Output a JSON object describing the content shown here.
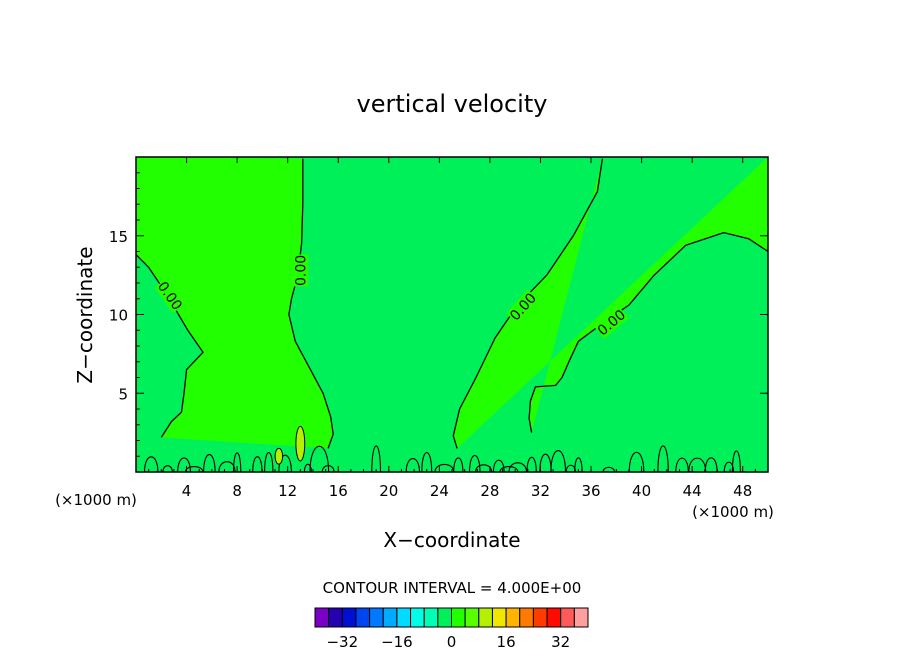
{
  "chart_data": {
    "type": "contour",
    "title": "vertical velocity",
    "xlabel": "X−coordinate",
    "ylabel": "Z−coordinate",
    "x_unit": "(×1000 m)",
    "y_unit": "(×1000 m)",
    "xlim": [
      0,
      50
    ],
    "ylim": [
      0,
      20
    ],
    "x_ticks": [
      4,
      8,
      12,
      16,
      20,
      24,
      28,
      32,
      36,
      40,
      44,
      48
    ],
    "y_ticks": [
      5,
      10,
      15
    ],
    "contour_interval_text": "CONTOUR INTERVAL = 4.000E+00",
    "contour_interval": 4.0,
    "contour_label": "0.00",
    "colors": {
      "negative_region": "#00f05a",
      "positive_region": "#22ff00"
    },
    "zero_contours": [
      {
        "name": "left-edge",
        "points": [
          [
            0,
            13.8
          ],
          [
            1,
            13
          ],
          [
            2,
            11.8
          ],
          [
            3,
            10.5
          ],
          [
            4.1,
            9
          ],
          [
            5.3,
            7.6
          ],
          [
            4,
            6.5
          ],
          [
            3.8,
            5
          ],
          [
            3.6,
            3.8
          ],
          [
            2.8,
            3.2
          ],
          [
            2,
            2.2
          ]
        ]
      },
      {
        "name": "x13",
        "points": [
          [
            13.2,
            19.9
          ],
          [
            13.2,
            17
          ],
          [
            13.1,
            14.5
          ],
          [
            12.8,
            12.5
          ],
          [
            12.3,
            11
          ],
          [
            12.1,
            10
          ],
          [
            12.6,
            8.3
          ],
          [
            13.8,
            6.5
          ],
          [
            14.8,
            5
          ],
          [
            15.4,
            3.5
          ],
          [
            15.6,
            2.4
          ],
          [
            15.2,
            1.5
          ]
        ]
      },
      {
        "name": "x36-branch",
        "points": [
          [
            36.9,
            19.9
          ],
          [
            36.5,
            17.8
          ],
          [
            34.6,
            15
          ],
          [
            32.5,
            12.5
          ],
          [
            30.1,
            10.5
          ],
          [
            28.4,
            8.5
          ],
          [
            26.9,
            6
          ],
          [
            25.6,
            4
          ],
          [
            25.1,
            2.3
          ],
          [
            25.4,
            1.5
          ]
        ]
      },
      {
        "name": "upper-right-bulge",
        "points": [
          [
            50,
            14
          ],
          [
            48.5,
            14.8
          ],
          [
            46.5,
            15.2
          ],
          [
            43.5,
            14.4
          ],
          [
            41,
            12.5
          ],
          [
            39,
            10.6
          ],
          [
            37,
            9.5
          ],
          [
            35,
            8.3
          ],
          [
            34.3,
            7.1
          ],
          [
            33.7,
            6
          ],
          [
            33.2,
            5.5
          ],
          [
            31.6,
            5.4
          ],
          [
            31.2,
            4.5
          ],
          [
            31.1,
            3.4
          ],
          [
            31.3,
            2.5
          ]
        ]
      }
    ],
    "small_contours": [
      {
        "name": "updraft-cell-x13",
        "cx": 13.0,
        "cy": 1.8,
        "rx": 0.35,
        "ry": 1.1
      },
      {
        "name": "updraft-cell-x11",
        "cx": 11.3,
        "cy": 1.0,
        "rx": 0.3,
        "ry": 0.5
      }
    ],
    "contour_labels": [
      {
        "x": 2.7,
        "y": 11.2,
        "angle": 55
      },
      {
        "x": 13.0,
        "y": 12.8,
        "angle": -90
      },
      {
        "x": 30.6,
        "y": 10.5,
        "angle": -48
      },
      {
        "x": 37.6,
        "y": 9.5,
        "angle": -40
      }
    ],
    "colorbar": {
      "levels": [
        -36,
        -32,
        -28,
        -24,
        -20,
        -16,
        -12,
        -8,
        -4,
        0,
        4,
        8,
        12,
        16,
        20,
        24,
        28,
        32,
        36
      ],
      "tick_values": [
        -32,
        -16,
        0,
        16,
        32
      ],
      "tick_labels": [
        "−32",
        "−16",
        "0",
        "16",
        "32"
      ],
      "colors": [
        "#7a00c8",
        "#2800b4",
        "#0010d2",
        "#0046f0",
        "#0078ff",
        "#00aaff",
        "#00dcff",
        "#00ffe6",
        "#00ffb4",
        "#00f05a",
        "#22ff00",
        "#58ff00",
        "#b4f000",
        "#f0e600",
        "#ffb400",
        "#ff7a00",
        "#ff3c00",
        "#ff0a00",
        "#ff5a5a",
        "#ffa0a0"
      ]
    }
  }
}
